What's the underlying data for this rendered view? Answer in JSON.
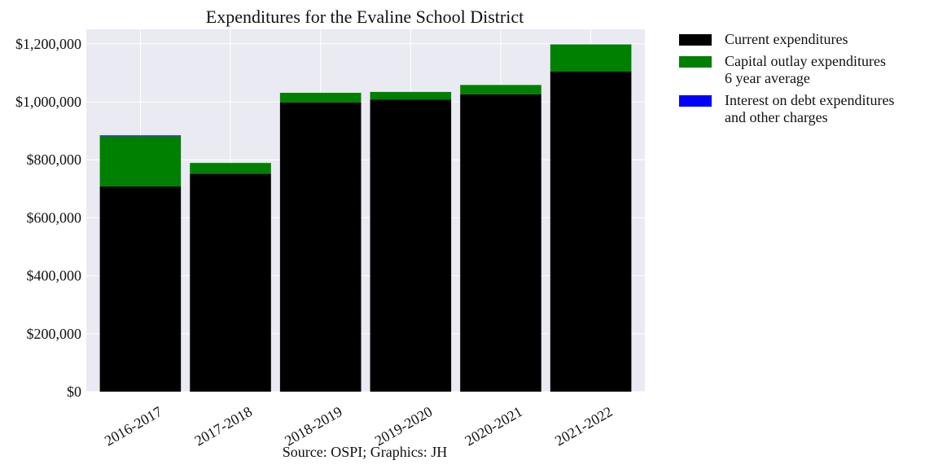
{
  "chart_data": {
    "type": "bar",
    "stacked": true,
    "title": "Expenditures for the Evaline School District",
    "source": "Source: OSPI; Graphics: JH",
    "xlabel": "",
    "ylabel": "",
    "ylim": [
      0,
      1250000
    ],
    "y_ticks": [
      0,
      200000,
      400000,
      600000,
      800000,
      1000000,
      1200000
    ],
    "y_tick_labels": [
      "$0",
      "$200,000",
      "$400,000",
      "$600,000",
      "$800,000",
      "$1,000,000",
      "$1,200,000"
    ],
    "categories": [
      "2016-2017",
      "2017-2018",
      "2018-2019",
      "2019-2020",
      "2020-2021",
      "2021-2022"
    ],
    "series": [
      {
        "name": "Current expenditures",
        "color": "#000000",
        "values": [
          708000,
          752000,
          998000,
          1007000,
          1026000,
          1104000
        ]
      },
      {
        "name": "Capital outlay expenditures\n6 year average",
        "color": "#008000",
        "values": [
          173000,
          37000,
          33000,
          27000,
          32000,
          94000
        ]
      },
      {
        "name": "Interest on debt expenditures\nand other charges",
        "color": "#0000ff",
        "values": [
          3000,
          0,
          0,
          0,
          0,
          0
        ]
      }
    ],
    "grid": true,
    "legend_position": "outside-right-top"
  }
}
